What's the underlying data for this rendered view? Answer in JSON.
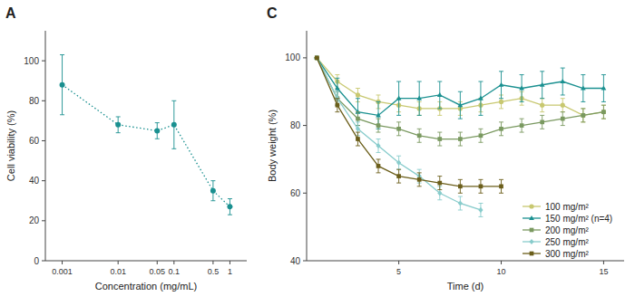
{
  "chart_data": [
    {
      "type": "line",
      "title": "A",
      "x": [
        0.001,
        0.01,
        0.05,
        0.1,
        0.5,
        1.0
      ],
      "values": [
        88,
        68,
        65,
        68,
        35,
        27
      ],
      "errors": [
        15,
        4,
        4,
        12,
        5,
        4
      ],
      "color": "#1a9090",
      "marker": "circle",
      "line_style": "dotted",
      "log": "x",
      "xlim": [
        0.0005,
        2.0
      ],
      "ylim": [
        0,
        115
      ],
      "xticks": [
        0.001,
        0.01,
        0.05,
        0.1,
        0.5,
        1
      ],
      "yticks": [
        0,
        20,
        40,
        60,
        80,
        100
      ],
      "xlabel": "Concentration (mg/mL)",
      "ylabel": "Cell viability (%)"
    },
    {
      "type": "line",
      "title": "C",
      "x": [
        1,
        2,
        3,
        4,
        5,
        6,
        7,
        8,
        9,
        10,
        11,
        12,
        13,
        14,
        15
      ],
      "series": [
        {
          "name": "100 mg/m²",
          "color": "#c8c870",
          "marker": "circle",
          "values": [
            100,
            93,
            89,
            87,
            86,
            85,
            85,
            85,
            86,
            87,
            88,
            86,
            86,
            83,
            84
          ],
          "errors": [
            0,
            2,
            2,
            2,
            2,
            2,
            2,
            2,
            2,
            2,
            2,
            2,
            2,
            2,
            2
          ]
        },
        {
          "name": "150 mg/m² (n=4)",
          "color": "#1a9090",
          "marker": "triangle",
          "values": [
            100,
            91,
            84,
            83,
            88,
            88,
            89,
            86,
            88,
            92,
            91,
            92,
            93,
            91,
            91
          ],
          "errors": [
            0,
            3,
            4,
            4,
            5,
            5,
            4,
            4,
            5,
            4,
            4,
            4,
            4,
            4,
            4
          ]
        },
        {
          "name": "200 mg/m²",
          "color": "#7a9960",
          "marker": "square",
          "values": [
            100,
            88,
            82,
            80,
            79,
            77,
            76,
            76,
            77,
            79,
            80,
            81,
            82,
            83,
            84
          ],
          "errors": [
            0,
            2,
            2,
            2,
            2,
            2,
            2,
            2,
            2,
            2,
            2,
            2,
            2,
            2,
            2
          ]
        },
        {
          "name": "250 mg/m²",
          "color": "#88cccc",
          "marker": "diamond",
          "values": [
            100,
            88,
            79,
            74,
            69,
            65,
            60,
            57,
            55,
            null,
            null,
            null,
            null,
            null,
            null
          ],
          "errors": [
            0,
            2,
            2,
            2,
            2,
            2,
            2,
            2,
            2,
            null,
            null,
            null,
            null,
            null,
            null
          ]
        },
        {
          "name": "300 mg/m²",
          "color": "#6b5e1a",
          "marker": "square",
          "values": [
            100,
            86,
            76,
            68,
            65,
            64,
            63,
            62,
            62,
            62,
            null,
            null,
            null,
            null,
            null
          ],
          "errors": [
            0,
            2,
            2,
            2,
            2,
            2,
            2,
            2,
            2,
            2,
            null,
            null,
            null,
            null,
            null
          ]
        }
      ],
      "legend": "lower right",
      "xlim": [
        0.5,
        16
      ],
      "ylim": [
        40,
        108
      ],
      "xticks": [
        5,
        10,
        15
      ],
      "yticks": [
        40,
        60,
        80,
        100
      ],
      "xlabel": "Time (d)",
      "ylabel": "Body weight (%)"
    }
  ]
}
